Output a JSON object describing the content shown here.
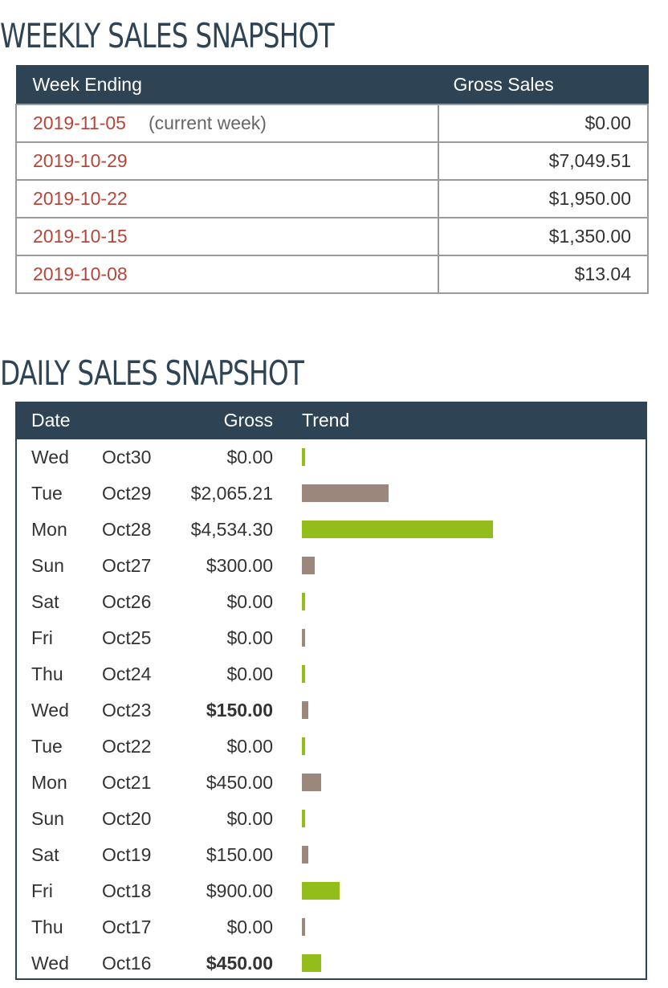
{
  "weekly": {
    "title": "WEEKLY SALES SNAPSHOT",
    "headers": {
      "week_ending": "Week Ending",
      "gross_sales": "Gross Sales"
    },
    "rows": [
      {
        "date": "2019-11-05",
        "note": "(current week)",
        "amount": "$0.00"
      },
      {
        "date": "2019-10-29",
        "note": "",
        "amount": "$7,049.51"
      },
      {
        "date": "2019-10-22",
        "note": "",
        "amount": "$1,950.00"
      },
      {
        "date": "2019-10-15",
        "note": "",
        "amount": "$1,350.00"
      },
      {
        "date": "2019-10-08",
        "note": "",
        "amount": "$13.04"
      }
    ]
  },
  "daily": {
    "title": "DAILY SALES SNAPSHOT",
    "headers": {
      "date": "Date",
      "gross": "Gross",
      "trend": "Trend"
    },
    "colors": {
      "green": "#93bd1a",
      "taupe": "#9b877b",
      "header_bg": "#2e4454",
      "date_link": "#b5463a"
    },
    "rows": [
      {
        "day": "Wed",
        "md": "Oct30",
        "gross": "$0.00",
        "value": 0,
        "bold": false,
        "bar_color": "green"
      },
      {
        "day": "Tue",
        "md": "Oct29",
        "gross": "$2,065.21",
        "value": 2065.21,
        "bold": false,
        "bar_color": "taupe"
      },
      {
        "day": "Mon",
        "md": "Oct28",
        "gross": "$4,534.30",
        "value": 4534.3,
        "bold": false,
        "bar_color": "green"
      },
      {
        "day": "Sun",
        "md": "Oct27",
        "gross": "$300.00",
        "value": 300,
        "bold": false,
        "bar_color": "taupe"
      },
      {
        "day": "Sat",
        "md": "Oct26",
        "gross": "$0.00",
        "value": 0,
        "bold": false,
        "bar_color": "green"
      },
      {
        "day": "Fri",
        "md": "Oct25",
        "gross": "$0.00",
        "value": 0,
        "bold": false,
        "bar_color": "taupe"
      },
      {
        "day": "Thu",
        "md": "Oct24",
        "gross": "$0.00",
        "value": 0,
        "bold": false,
        "bar_color": "green"
      },
      {
        "day": "Wed",
        "md": "Oct23",
        "gross": "$150.00",
        "value": 150,
        "bold": true,
        "bar_color": "taupe"
      },
      {
        "day": "Tue",
        "md": "Oct22",
        "gross": "$0.00",
        "value": 0,
        "bold": false,
        "bar_color": "green"
      },
      {
        "day": "Mon",
        "md": "Oct21",
        "gross": "$450.00",
        "value": 450,
        "bold": false,
        "bar_color": "taupe"
      },
      {
        "day": "Sun",
        "md": "Oct20",
        "gross": "$0.00",
        "value": 0,
        "bold": false,
        "bar_color": "green"
      },
      {
        "day": "Sat",
        "md": "Oct19",
        "gross": "$150.00",
        "value": 150,
        "bold": false,
        "bar_color": "taupe"
      },
      {
        "day": "Fri",
        "md": "Oct18",
        "gross": "$900.00",
        "value": 900,
        "bold": false,
        "bar_color": "green"
      },
      {
        "day": "Thu",
        "md": "Oct17",
        "gross": "$0.00",
        "value": 0,
        "bold": false,
        "bar_color": "taupe"
      },
      {
        "day": "Wed",
        "md": "Oct16",
        "gross": "$450.00",
        "value": 450,
        "bold": true,
        "bar_color": "green"
      }
    ]
  }
}
